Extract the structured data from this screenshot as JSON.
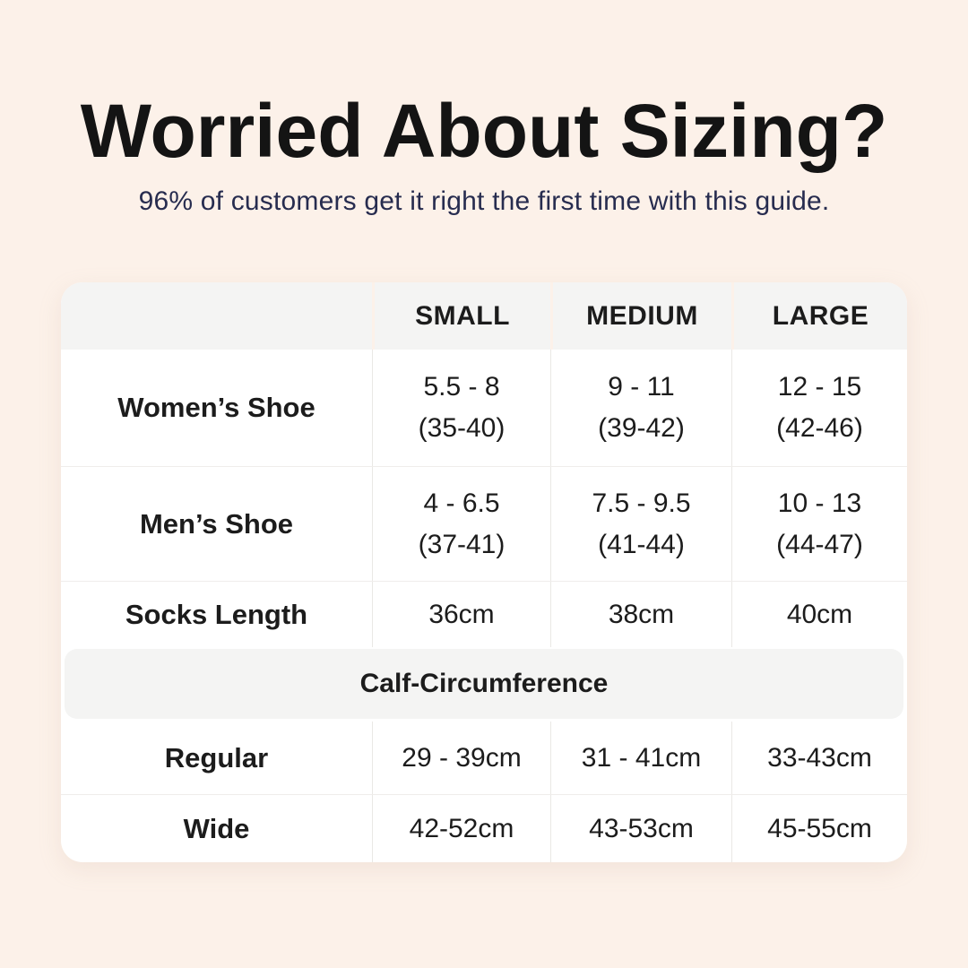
{
  "header": {
    "title": "Worried About Sizing?",
    "subtitle": "96% of customers get it right the first time with this guide."
  },
  "table": {
    "column_headers": [
      "SMALL",
      "MEDIUM",
      "LARGE"
    ],
    "shoe_rows": [
      {
        "label": "Women’s Shoe",
        "cells": [
          {
            "us": "5.5 - 8",
            "eu": "(35-40)"
          },
          {
            "us": "9 - 11",
            "eu": "(39-42)"
          },
          {
            "us": "12 - 15",
            "eu": "(42-46)"
          }
        ]
      },
      {
        "label": "Men’s Shoe",
        "cells": [
          {
            "us": "4 - 6.5",
            "eu": "(37-41)"
          },
          {
            "us": "7.5 - 9.5",
            "eu": "(41-44)"
          },
          {
            "us": "10 - 13",
            "eu": "(44-47)"
          }
        ]
      },
      {
        "label": "Socks Length",
        "cells": [
          {
            "us": "36cm"
          },
          {
            "us": "38cm"
          },
          {
            "us": "40cm"
          }
        ]
      }
    ],
    "section_header": "Calf-Circumference",
    "calf_rows": [
      {
        "label": "Regular",
        "cells": [
          "29 - 39cm",
          "31 - 41cm",
          "33-43cm"
        ]
      },
      {
        "label": "Wide",
        "cells": [
          "42-52cm",
          "43-53cm",
          "45-55cm"
        ]
      }
    ]
  },
  "colors": {
    "background": "#fcf1e9",
    "card": "#ffffff",
    "header_fill": "#f4f4f3",
    "divider": "#eae8e5",
    "row_divider": "#efedeb",
    "title_text": "#141414",
    "subtitle_text": "#272c4f",
    "table_text": "#1c1c1c"
  }
}
